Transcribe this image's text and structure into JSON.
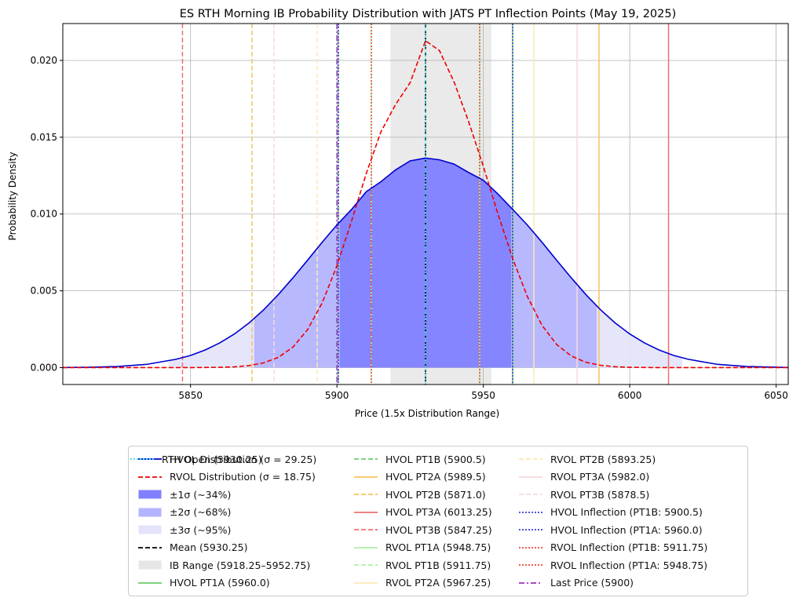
{
  "chart_data": {
    "type": "line",
    "title": "ES RTH Morning IB Probability Distribution with JATS PT Inflection Points (May 19, 2025)",
    "xlabel": "Price (1.5x Distribution Range)",
    "ylabel": "Probability Density",
    "xlim": [
      5806.375,
      6054.125
    ],
    "ylim": [
      -0.0011,
      0.0224
    ],
    "xticks": [
      5850,
      5900,
      5950,
      6000,
      6050
    ],
    "xtick_labels": [
      "5850",
      "5900",
      "5950",
      "6000",
      "6050"
    ],
    "yticks": [
      0.0,
      0.005,
      0.01,
      0.015,
      0.02
    ],
    "ytick_labels": [
      "0.000",
      "0.005",
      "0.010",
      "0.015",
      "0.020"
    ],
    "grid": true,
    "legend_position": "below the plot, 3 columns",
    "mean": 5930.25,
    "hvol_sigma": 29.25,
    "rvol_sigma": 18.75,
    "curve_x": [
      5806.375,
      5815,
      5825,
      5835,
      5845,
      5850,
      5855,
      5860,
      5865,
      5870,
      5875,
      5880,
      5885,
      5890,
      5895,
      5900,
      5905,
      5910,
      5915,
      5920,
      5925,
      5930.25,
      5935,
      5940,
      5945,
      5950,
      5955,
      5960,
      5965,
      5970,
      5975,
      5980,
      5985,
      5990,
      5995,
      6000,
      6005,
      6010,
      6015,
      6020,
      6030,
      6040,
      6054.125
    ],
    "hvol_density": [
      1e-05,
      2e-05,
      7e-05,
      0.00021,
      0.00054,
      0.00079,
      0.00115,
      0.00161,
      0.00219,
      0.00291,
      0.00377,
      0.00476,
      0.00585,
      0.007,
      0.00817,
      0.00929,
      0.0103,
      0.01145,
      0.0121,
      0.01287,
      0.01346,
      0.01364,
      0.01353,
      0.01325,
      0.0127,
      0.0122,
      0.0113,
      0.0103,
      0.00929,
      0.00817,
      0.007,
      0.00585,
      0.00476,
      0.00377,
      0.00291,
      0.00219,
      0.00161,
      0.00115,
      0.00079,
      0.00054,
      0.00021,
      7e-05,
      1e-05
    ],
    "rvol_density": [
      0,
      0,
      0,
      0,
      0,
      0,
      1e-05,
      2e-05,
      5e-05,
      0.00013,
      0.00031,
      0.00067,
      0.00134,
      0.00248,
      0.00423,
      0.00663,
      0.00955,
      0.01263,
      0.01534,
      0.01712,
      0.01855,
      0.02128,
      0.02064,
      0.0186,
      0.016,
      0.0131,
      0.01,
      0.00711,
      0.00464,
      0.00276,
      0.00151,
      0.00076,
      0.00035,
      0.00015,
      6e-05,
      2e-05,
      1e-05,
      0,
      0,
      0,
      0,
      0,
      0
    ],
    "bands": [
      {
        "label": "±1σ (~34%)",
        "from": 5901.0,
        "to": 5959.5,
        "color": "#8080ff"
      },
      {
        "label": "±2σ (~68%)",
        "from": 5871.75,
        "to": 5988.75,
        "color": "#b3b3ff"
      },
      {
        "label": "±3σ (~95%)",
        "from": 5842.5,
        "to": 6018.0,
        "color": "#e3e3fb"
      }
    ],
    "ib_range": {
      "label": "IB Range (5918.25–5952.75)",
      "from": 5918.25,
      "to": 5952.75
    },
    "series": [
      {
        "name": "HVOL Distribution (σ = 29.25)",
        "color": "#0000cc",
        "style": "solid",
        "kind": "curve",
        "key": "hvol_density"
      },
      {
        "name": "RVOL Distribution (σ = 18.75)",
        "color": "#ee0000",
        "style": "dashed",
        "kind": "curve",
        "key": "rvol_density"
      },
      {
        "name": "±1σ (~34%)",
        "color": "#8080ff",
        "style": "patch",
        "kind": "legend"
      },
      {
        "name": "±2σ (~68%)",
        "color": "#b3b3ff",
        "style": "patch",
        "kind": "legend"
      },
      {
        "name": "±3σ (~95%)",
        "color": "#e3e3fb",
        "style": "patch",
        "kind": "legend"
      },
      {
        "name": "Mean (5930.25)",
        "color": "#000000",
        "style": "dashed",
        "kind": "vline",
        "x": 5930.25
      },
      {
        "name": "IB Range (5918.25–5952.75)",
        "color": "#e6e6e6",
        "style": "patch",
        "kind": "legend"
      },
      {
        "name": "HVOL PT1A (5960.0)",
        "color": "#6cc96c",
        "style": "solid",
        "kind": "vline",
        "x": 5960.0
      },
      {
        "name": "HVOL PT1B (5900.5)",
        "color": "#6cc96c",
        "style": "dashed",
        "kind": "vline",
        "x": 5900.5
      },
      {
        "name": "HVOL PT2A (5989.5)",
        "color": "#f7c25e",
        "style": "solid",
        "kind": "vline",
        "x": 5989.5
      },
      {
        "name": "HVOL PT2B (5871.0)",
        "color": "#f7c25e",
        "style": "dashed",
        "kind": "vline",
        "x": 5871.0
      },
      {
        "name": "HVOL PT3A (6013.25)",
        "color": "#ee7070",
        "style": "solid",
        "kind": "vline",
        "x": 6013.25
      },
      {
        "name": "HVOL PT3B (5847.25)",
        "color": "#ee7070",
        "style": "dashed",
        "kind": "vline",
        "x": 5847.25
      },
      {
        "name": "RVOL PT1A (5948.75)",
        "color": "#aef0a6",
        "style": "solid",
        "kind": "vline",
        "x": 5948.75
      },
      {
        "name": "RVOL PT1B (5911.75)",
        "color": "#aef0a6",
        "style": "dashed",
        "kind": "vline",
        "x": 5911.75
      },
      {
        "name": "RVOL PT2A (5967.25)",
        "color": "#fbeab3",
        "style": "solid",
        "kind": "vline",
        "x": 5967.25
      },
      {
        "name": "RVOL PT2B (5893.25)",
        "color": "#fbeab3",
        "style": "dashed",
        "kind": "vline",
        "x": 5893.25
      },
      {
        "name": "RVOL PT3A (5982.0)",
        "color": "#f6dada",
        "style": "solid",
        "kind": "vline",
        "x": 5982.0
      },
      {
        "name": "RVOL PT3B (5878.5)",
        "color": "#f6dada",
        "style": "dashed",
        "kind": "vline",
        "x": 5878.5
      },
      {
        "name": "HVOL Inflection (PT1B: 5900.5)",
        "color": "#3a3ad8",
        "style": "dotted",
        "kind": "vline",
        "x": 5900.5
      },
      {
        "name": "HVOL Inflection (PT1A: 5960.0)",
        "color": "#3a3ad8",
        "style": "dotted",
        "kind": "vline",
        "x": 5960.0
      },
      {
        "name": "RVOL Inflection (PT1B: 5911.75)",
        "color": "#ee4433",
        "style": "dotted",
        "kind": "vline",
        "x": 5911.75
      },
      {
        "name": "RVOL Inflection (PT1A: 5948.75)",
        "color": "#ee4433",
        "style": "dotted",
        "kind": "vline",
        "x": 5948.75
      },
      {
        "name": "Last Price (5900)",
        "color": "#9933bb",
        "style": "dashdot",
        "kind": "vline",
        "x": 5900
      },
      {
        "name": "RTH Open (5930.25)",
        "color": "#33e6e6",
        "style": "dotted",
        "kind": "vline",
        "x": 5930.25
      }
    ]
  }
}
